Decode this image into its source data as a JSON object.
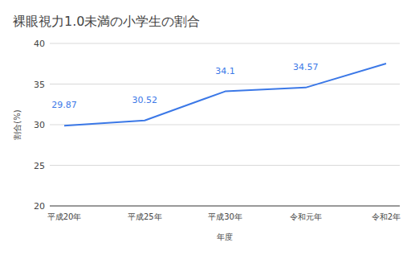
{
  "chart_data": {
    "type": "line",
    "title": "裸眼視力1.0未満の小学生の割合",
    "x_label": "年度",
    "y_label": "割合(%)",
    "categories": [
      "平成20年",
      "平成25年",
      "平成30年",
      "令和元年",
      "令和2年"
    ],
    "values": [
      29.87,
      30.52,
      34.1,
      34.57,
      37.52
    ],
    "value_labels": [
      "29.87",
      "30.52",
      "34.1",
      "34.57",
      null
    ],
    "color": "#3b78e7",
    "ylim": [
      20,
      40
    ],
    "yticks": [
      20,
      25,
      30,
      35,
      40
    ],
    "grid": true,
    "data_labels": true
  }
}
